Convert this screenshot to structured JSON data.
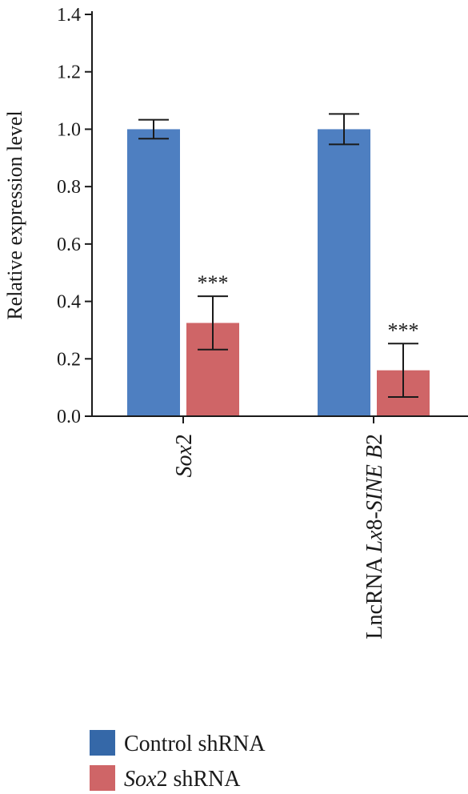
{
  "chart_data": {
    "type": "bar",
    "title": "",
    "xlabel": "",
    "ylabel": "Relative expression level",
    "ylim": [
      0,
      1.4
    ],
    "yticks": [
      "0.0",
      "0.2",
      "0.4",
      "0.6",
      "0.8",
      "1.0",
      "1.2",
      "1.4"
    ],
    "categories": [
      {
        "parts": [
          {
            "text": "Sox",
            "italic": true
          },
          {
            "text": "2",
            "italic": false
          }
        ]
      },
      {
        "parts": [
          {
            "text": "LncRNA ",
            "italic": false
          },
          {
            "text": "Lx",
            "italic": true
          },
          {
            "text": "8-",
            "italic": false
          },
          {
            "text": "SINE B",
            "italic": true
          },
          {
            "text": "2",
            "italic": false
          }
        ]
      }
    ],
    "series": [
      {
        "name": "Control shRNA",
        "name_parts": [
          {
            "text": "Control shRNA",
            "italic": false
          }
        ],
        "color": "#4e7fc1",
        "legend_color": "#3568a8",
        "values": [
          1.0,
          1.0
        ],
        "errors": [
          0.033,
          0.053
        ],
        "annotations": [
          "",
          ""
        ]
      },
      {
        "name": "Sox2 shRNA",
        "name_parts": [
          {
            "text": "Sox",
            "italic": true
          },
          {
            "text": "2 shRNA",
            "italic": false
          }
        ],
        "color": "#cf6567",
        "legend_color": "#cf6567",
        "values": [
          0.325,
          0.16
        ],
        "errors": [
          0.093,
          0.093
        ],
        "annotations": [
          "***",
          "***"
        ]
      }
    ],
    "legend_position": "bottom-left",
    "grid": false
  }
}
